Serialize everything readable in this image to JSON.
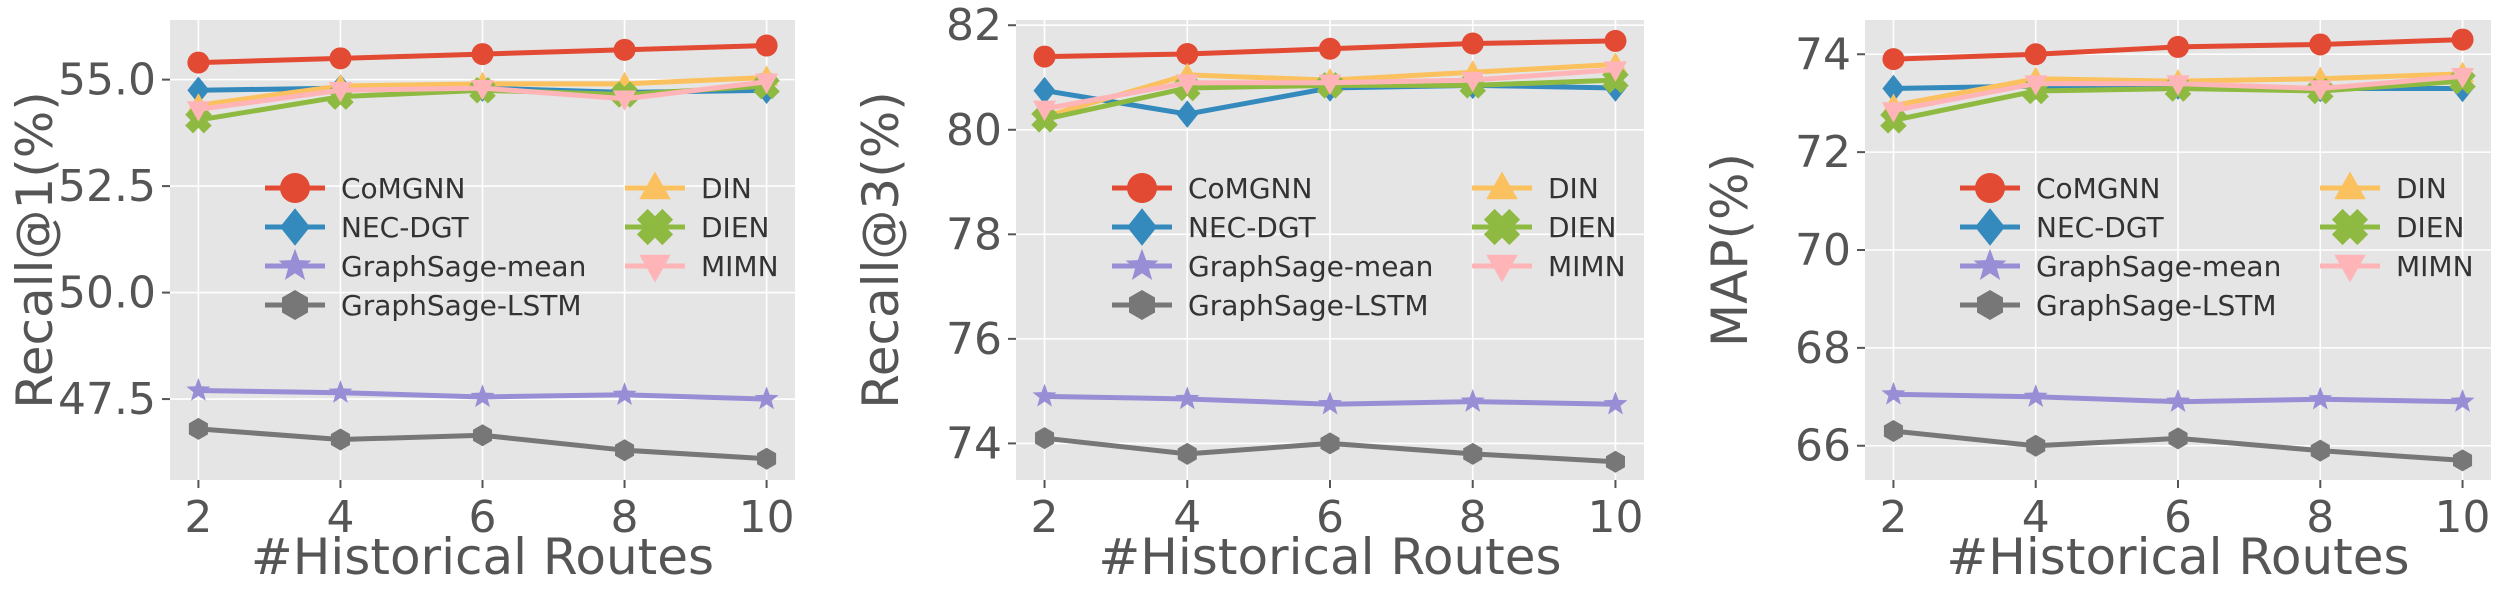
{
  "colors": {
    "CoMGNN": "#E24A33",
    "NEC-DGT": "#348ABD",
    "GraphSage-mean": "#988ED5",
    "GraphSage-LSTM": "#777777",
    "DIN": "#FBC15E",
    "DIEN": "#8EBA42",
    "MIMN": "#FFB5B8",
    "panel_bg": "#E5E5E5",
    "grid": "#FFFFFF",
    "tick_text": "#555555"
  },
  "markers": {
    "CoMGNN": "circle",
    "NEC-DGT": "diamond",
    "GraphSage-mean": "star",
    "GraphSage-LSTM": "hexagon",
    "DIN": "triangle-up",
    "DIEN": "x-filled",
    "MIMN": "triangle-down"
  },
  "chart_data": [
    {
      "type": "line",
      "title": "",
      "xlabel": "#Historical Routes",
      "ylabel": "Recall@1(%)",
      "x": [
        2,
        4,
        6,
        8,
        10
      ],
      "xticks": [
        "2",
        "4",
        "6",
        "8",
        "10"
      ],
      "xlim": [
        1.6,
        10.4
      ],
      "yticks": [
        "47.5",
        "50.0",
        "52.5",
        "55.0"
      ],
      "ytick_values": [
        47.5,
        50.0,
        52.5,
        55.0
      ],
      "ylim": [
        45.6,
        56.4
      ],
      "grid": true,
      "legend": "center-right, 2 columns",
      "series": [
        {
          "name": "CoMGNN",
          "values": [
            55.4,
            55.5,
            55.6,
            55.7,
            55.8
          ]
        },
        {
          "name": "NEC-DGT",
          "values": [
            54.75,
            54.8,
            54.8,
            54.7,
            54.75
          ]
        },
        {
          "name": "GraphSage-mean",
          "values": [
            47.7,
            47.65,
            47.55,
            47.6,
            47.5
          ]
        },
        {
          "name": "GraphSage-LSTM",
          "values": [
            46.8,
            46.55,
            46.65,
            46.3,
            46.1
          ]
        },
        {
          "name": "DIN",
          "values": [
            54.4,
            54.85,
            54.9,
            54.9,
            55.05
          ]
        },
        {
          "name": "DIEN",
          "values": [
            54.05,
            54.6,
            54.75,
            54.65,
            54.85
          ]
        },
        {
          "name": "MIMN",
          "values": [
            54.3,
            54.75,
            54.8,
            54.55,
            54.95
          ]
        }
      ]
    },
    {
      "type": "line",
      "title": "",
      "xlabel": "#Historical Routes",
      "ylabel": "Recall@3(%)",
      "x": [
        2,
        4,
        6,
        8,
        10
      ],
      "xticks": [
        "2",
        "4",
        "6",
        "8",
        "10"
      ],
      "xlim": [
        1.6,
        10.4
      ],
      "yticks": [
        "74",
        "76",
        "78",
        "80",
        "82"
      ],
      "ytick_values": [
        74,
        76,
        78,
        80,
        82
      ],
      "ylim": [
        73.3,
        82.1
      ],
      "grid": true,
      "legend": "center-right, 2 columns",
      "series": [
        {
          "name": "CoMGNN",
          "values": [
            81.4,
            81.45,
            81.55,
            81.65,
            81.7
          ]
        },
        {
          "name": "NEC-DGT",
          "values": [
            80.75,
            80.3,
            80.8,
            80.85,
            80.8
          ]
        },
        {
          "name": "GraphSage-mean",
          "values": [
            74.9,
            74.85,
            74.75,
            74.8,
            74.75
          ]
        },
        {
          "name": "GraphSage-LSTM",
          "values": [
            74.1,
            73.8,
            74.0,
            73.8,
            73.65
          ]
        },
        {
          "name": "DIN",
          "values": [
            80.25,
            81.05,
            80.95,
            81.1,
            81.25
          ]
        },
        {
          "name": "DIEN",
          "values": [
            80.2,
            80.8,
            80.85,
            80.85,
            80.95
          ]
        },
        {
          "name": "MIMN",
          "values": [
            80.4,
            80.9,
            80.9,
            80.95,
            81.15
          ]
        }
      ]
    },
    {
      "type": "line",
      "title": "",
      "xlabel": "#Historical Routes",
      "ylabel": "MAP(%)",
      "x": [
        2,
        4,
        6,
        8,
        10
      ],
      "xticks": [
        "2",
        "4",
        "6",
        "8",
        "10"
      ],
      "xlim": [
        1.6,
        10.4
      ],
      "yticks": [
        "66",
        "68",
        "70",
        "72",
        "74"
      ],
      "ytick_values": [
        66,
        68,
        70,
        72,
        74
      ],
      "ylim": [
        65.3,
        74.7
      ],
      "grid": true,
      "legend": "center-right, 2 columns",
      "series": [
        {
          "name": "CoMGNN",
          "values": [
            73.9,
            74.0,
            74.15,
            74.2,
            74.3
          ]
        },
        {
          "name": "NEC-DGT",
          "values": [
            73.3,
            73.35,
            73.35,
            73.3,
            73.3
          ]
        },
        {
          "name": "GraphSage-mean",
          "values": [
            67.05,
            67.0,
            66.9,
            66.95,
            66.9
          ]
        },
        {
          "name": "GraphSage-LSTM",
          "values": [
            66.3,
            66.0,
            66.15,
            65.9,
            65.7
          ]
        },
        {
          "name": "DIN",
          "values": [
            72.95,
            73.5,
            73.45,
            73.5,
            73.6
          ]
        },
        {
          "name": "DIEN",
          "values": [
            72.65,
            73.25,
            73.3,
            73.25,
            73.45
          ]
        },
        {
          "name": "MIMN",
          "values": [
            72.85,
            73.4,
            73.4,
            73.3,
            73.55
          ]
        }
      ]
    }
  ]
}
